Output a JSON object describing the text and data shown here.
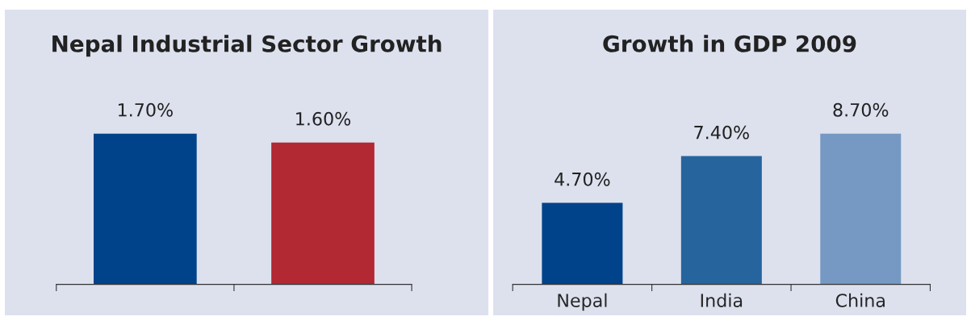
{
  "chart_data": [
    {
      "type": "bar",
      "title": "Nepal Industrial Sector Growth",
      "categories": [
        null,
        null
      ],
      "values": [
        1.7,
        1.6
      ],
      "colors": [
        "#00438a",
        "#b22833"
      ],
      "value_labels": [
        "1.70%",
        "1.60%"
      ]
    },
    {
      "type": "bar",
      "title": "Growth in GDP 2009",
      "categories": [
        "Nepal",
        "India",
        "China"
      ],
      "values": [
        4.7,
        7.4,
        8.7
      ],
      "colors": [
        "#00438a",
        "#26649e",
        "#7699c3"
      ],
      "value_labels": [
        "4.70%",
        "7.40%",
        "8.70%"
      ]
    }
  ]
}
